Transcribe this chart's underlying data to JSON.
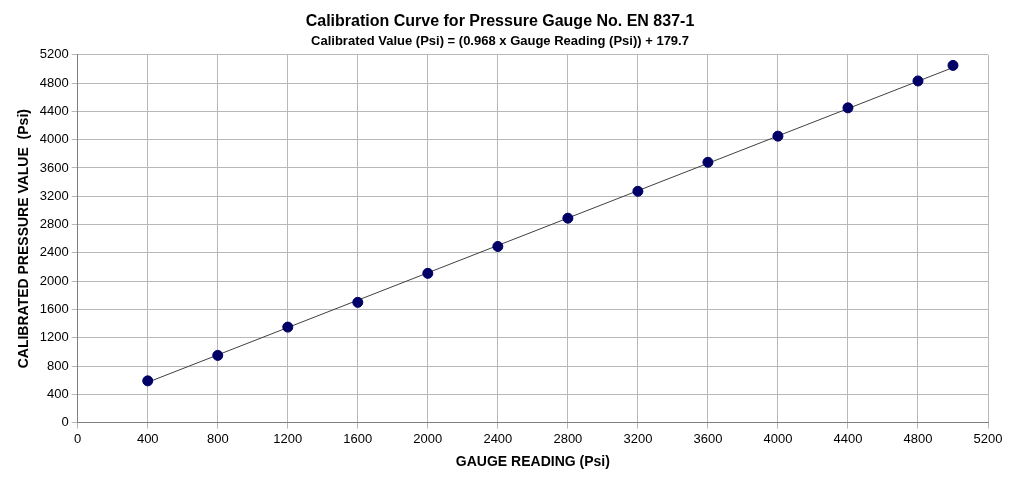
{
  "chart_data": {
    "type": "scatter",
    "title": "Calibration Curve for Pressure Gauge No. EN 837-1",
    "subtitle": "Calibrated Value (Psi) = (0.968 x Gauge Reading (Psi)) + 179.7",
    "xlabel": "GAUGE READING (Psi)",
    "ylabel": "CALIBRATED PRESSURE VALUE  (Psi)",
    "xlim": [
      0,
      5200
    ],
    "xticks": [
      0,
      400,
      800,
      1200,
      1600,
      2000,
      2400,
      2800,
      3200,
      3600,
      4000,
      4400,
      4800,
      5200
    ],
    "ylim": [
      0,
      5200
    ],
    "yticks": [
      0,
      400,
      800,
      1200,
      1600,
      2000,
      2400,
      2800,
      3200,
      3600,
      4000,
      4400,
      4800,
      5200
    ],
    "grid": true,
    "legend": false,
    "series": [
      {
        "type": "line",
        "color": "#404040",
        "x": [
          400,
          5000
        ],
        "values": [
          570,
          5020
        ]
      },
      {
        "type": "scatter",
        "color": "#000066",
        "marker": "circle",
        "x": [
          400,
          800,
          1200,
          1600,
          2000,
          2400,
          2800,
          3200,
          3600,
          4000,
          4400,
          4800,
          5000
        ],
        "values": [
          590,
          950,
          1350,
          1700,
          2110,
          2490,
          2890,
          3270,
          3680,
          4050,
          4450,
          4830,
          5050
        ]
      }
    ]
  }
}
